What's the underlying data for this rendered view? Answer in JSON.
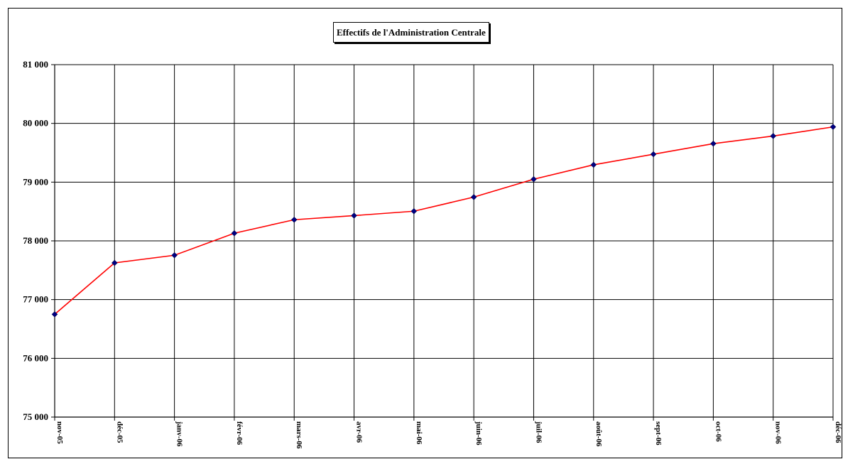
{
  "chart_data": {
    "type": "line",
    "title": "Effectifs de l'Administration Centrale",
    "xlabel": "",
    "ylabel": "",
    "categories": [
      "nov-05",
      "déc-05",
      "janv-06",
      "févr-06",
      "mars-06",
      "avr-06",
      "mai-06",
      "juin-06",
      "juil-06",
      "août-06",
      "sept-06",
      "oct-06",
      "nov-06",
      "déc-06"
    ],
    "series": [
      {
        "values": [
          76750,
          77625,
          77755,
          78130,
          78360,
          78430,
          78505,
          78745,
          79050,
          79295,
          79475,
          79655,
          79785,
          79940
        ],
        "line_color": "#ff0000",
        "marker_color": "#000080"
      }
    ],
    "ylim": [
      75000,
      81000
    ],
    "yticks": [
      75000,
      76000,
      77000,
      78000,
      79000,
      80000,
      81000
    ],
    "ytick_labels": [
      "75 000",
      "76 000",
      "77 000",
      "78 000",
      "79 000",
      "80 000",
      "81 000"
    ],
    "grid": true,
    "legend": "none"
  }
}
